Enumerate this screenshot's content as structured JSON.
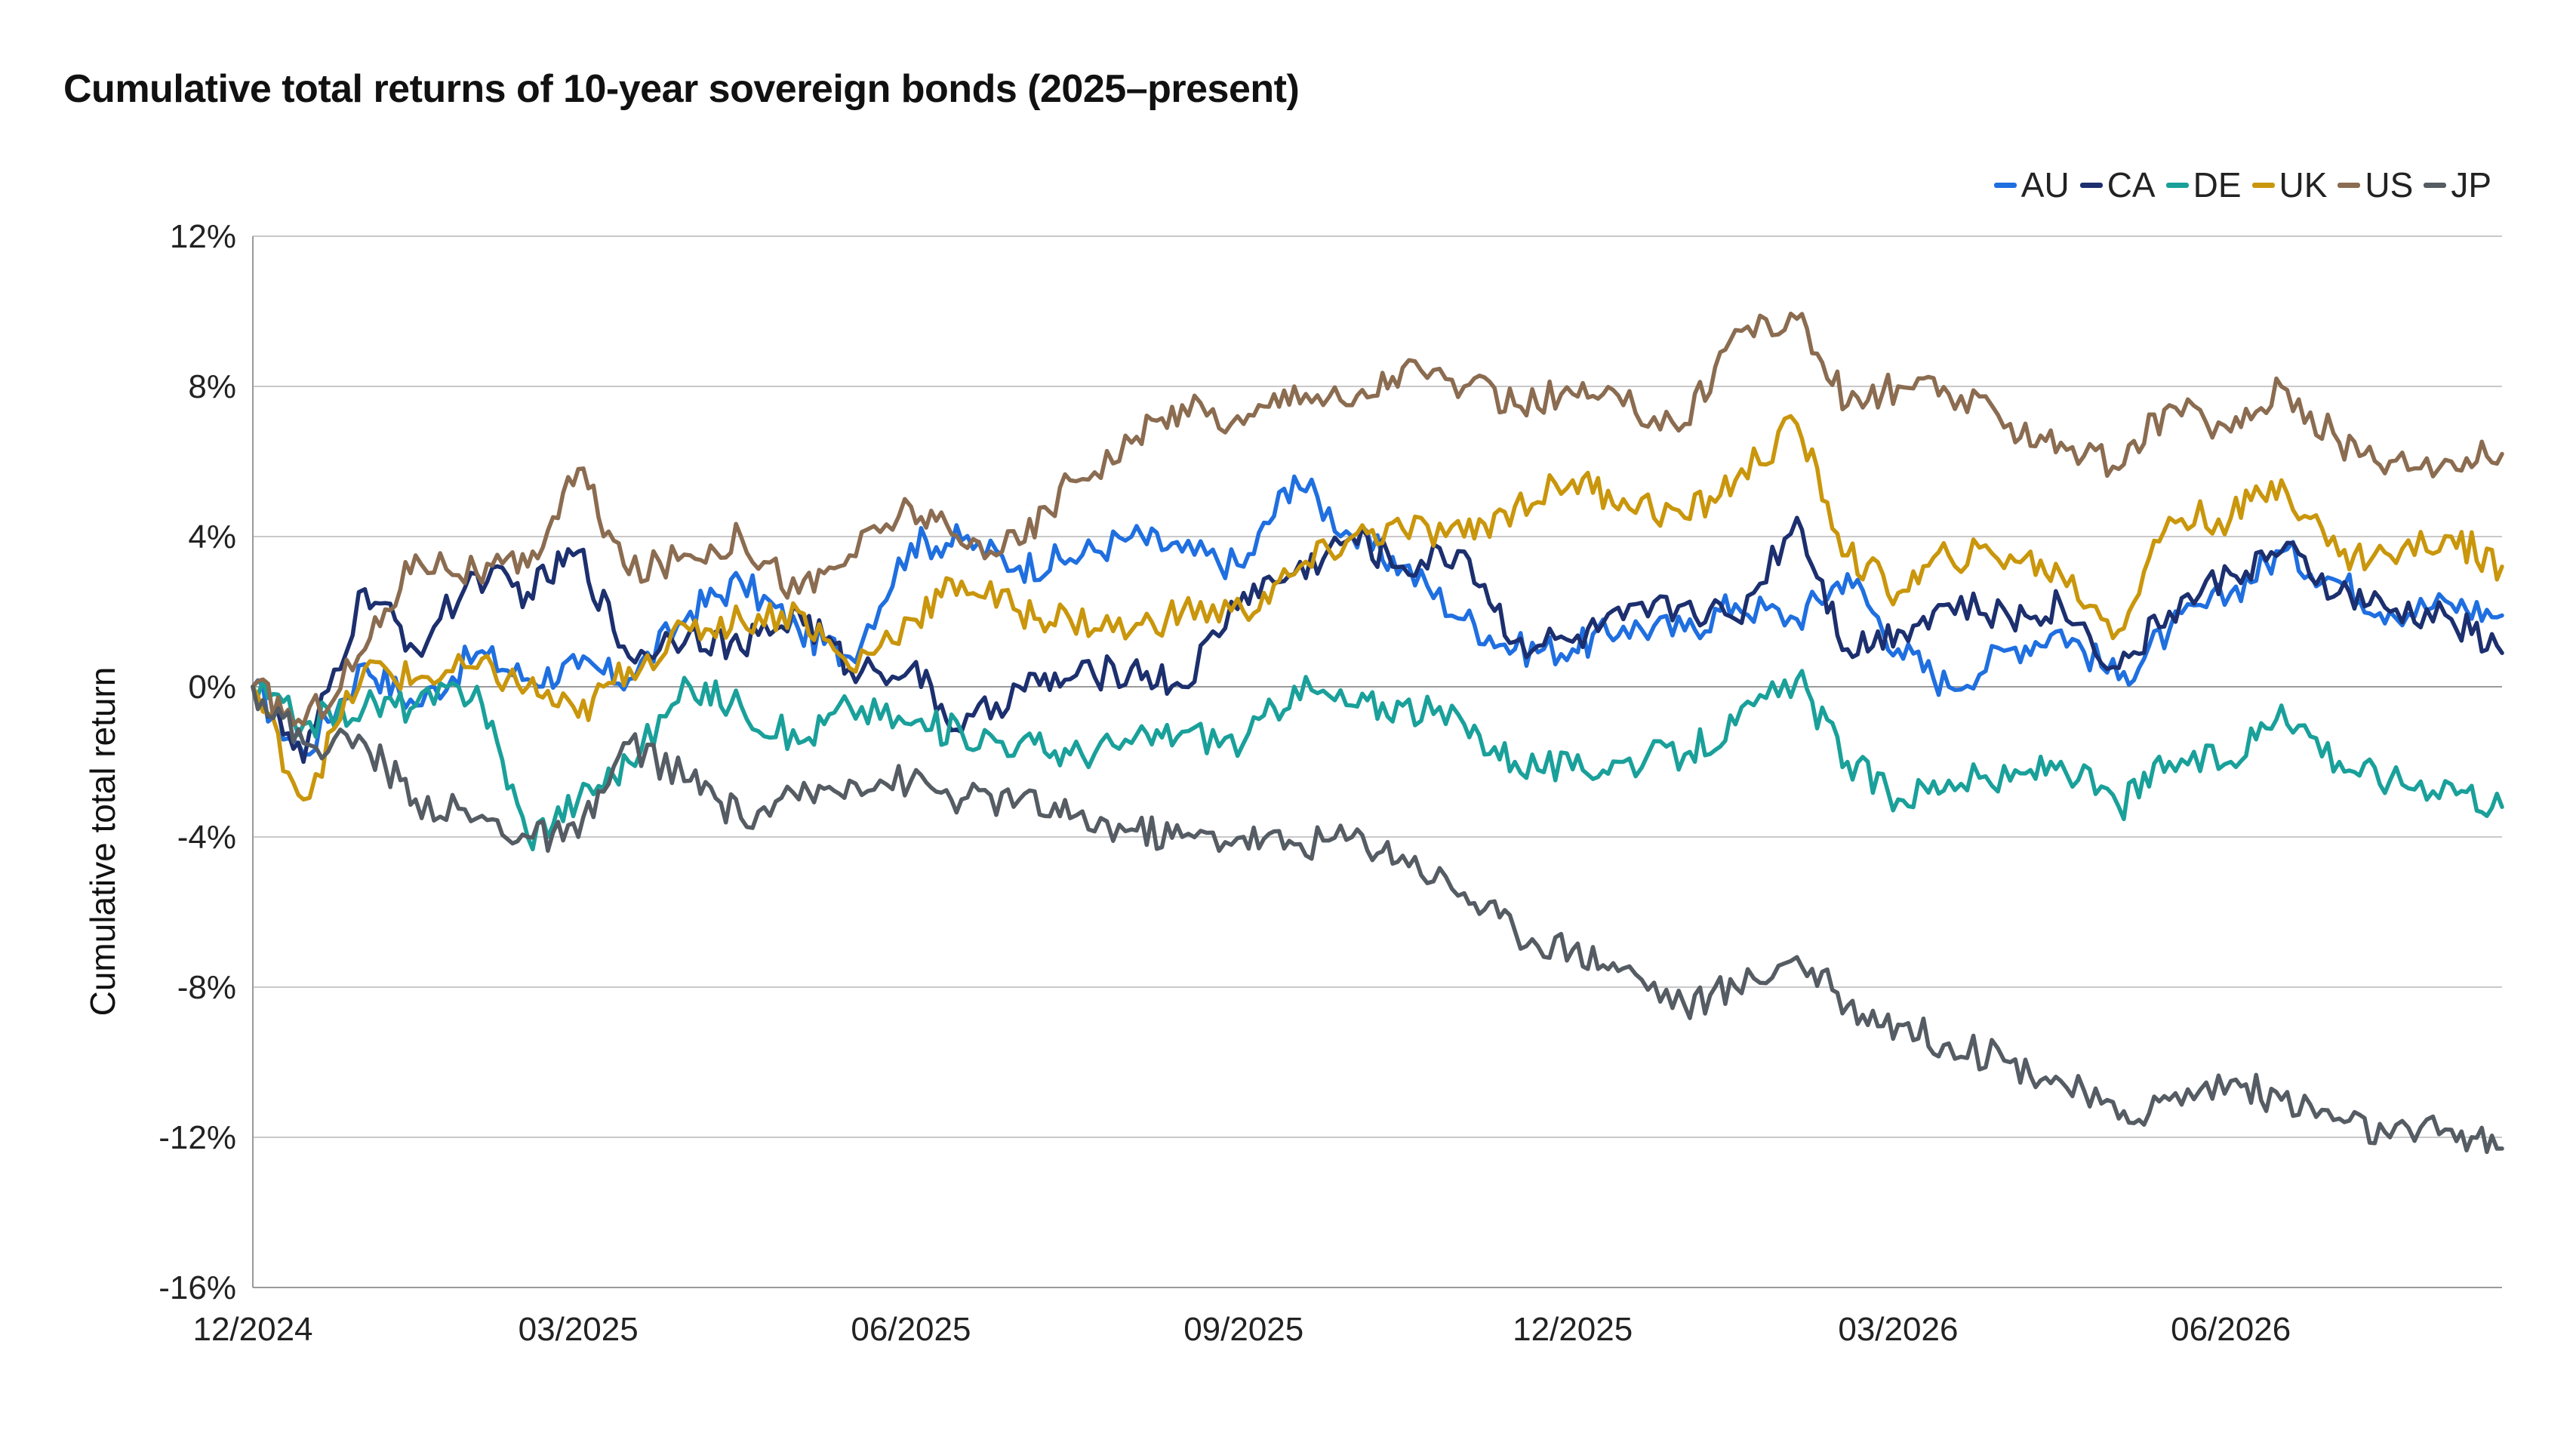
{
  "chart_data": {
    "type": "line",
    "title": "Cumulative total returns of 10-year sovereign bonds (2025–present)",
    "ylabel": "Cumulative total return",
    "xlabel": "",
    "ylim": [
      -16,
      12
    ],
    "yticks": [
      12,
      8,
      4,
      0,
      -4,
      -8,
      -12,
      -16
    ],
    "ytick_labels": [
      "12%",
      "8%",
      "4%",
      "0%",
      "-4%",
      "-8%",
      "-12%",
      "-16%"
    ],
    "xlim": [
      "2024-12-01",
      "2026-08-15"
    ],
    "xticks": [
      "2024-12-01",
      "2025-03-01",
      "2025-06-01",
      "2025-09-01",
      "2025-12-01",
      "2026-03-01",
      "2026-06-01"
    ],
    "xtick_labels": [
      "12/2024",
      "03/2025",
      "06/2025",
      "09/2025",
      "12/2025",
      "03/2026",
      "06/2026"
    ],
    "grid": true,
    "legend_position": "top-right",
    "x": [
      "2024-12-01",
      "2024-12-15",
      "2025-01-01",
      "2025-01-15",
      "2025-02-01",
      "2025-02-15",
      "2025-03-01",
      "2025-03-15",
      "2025-04-01",
      "2025-04-15",
      "2025-05-01",
      "2025-05-15",
      "2025-06-01",
      "2025-06-15",
      "2025-07-01",
      "2025-07-15",
      "2025-08-01",
      "2025-08-15",
      "2025-09-01",
      "2025-09-15",
      "2025-10-01",
      "2025-10-15",
      "2025-11-01",
      "2025-11-15",
      "2025-12-01",
      "2025-12-15",
      "2026-01-01",
      "2026-01-15",
      "2026-02-01",
      "2026-02-15",
      "2026-03-01",
      "2026-03-15",
      "2026-04-01",
      "2026-04-15",
      "2026-05-01",
      "2026-05-15",
      "2026-06-01",
      "2026-06-15",
      "2026-07-01",
      "2026-07-15",
      "2026-08-01",
      "2026-08-15"
    ],
    "series": [
      {
        "name": "AU",
        "color": "#1f6fe0",
        "values": [
          0.0,
          -1.8,
          0.6,
          -0.5,
          0.9,
          0.2,
          0.5,
          0.2,
          2.0,
          2.8,
          1.5,
          0.8,
          3.8,
          3.9,
          3.2,
          3.4,
          4.0,
          3.6,
          3.2,
          5.6,
          4.0,
          3.2,
          1.8,
          1.0,
          1.0,
          1.6,
          1.5,
          2.2,
          1.8,
          3.0,
          1.0,
          0.0,
          1.0,
          1.5,
          0.2,
          1.5,
          2.5,
          3.6,
          2.8,
          2.0,
          2.2,
          1.9
        ]
      },
      {
        "name": "CA",
        "color": "#1c2f6e",
        "values": [
          0.0,
          -2.0,
          2.6,
          1.0,
          3.0,
          2.5,
          3.6,
          0.8,
          1.5,
          1.0,
          2.0,
          0.5,
          0.5,
          -1.2,
          0.0,
          0.2,
          0.5,
          0.0,
          2.5,
          3.0,
          4.0,
          3.2,
          3.6,
          1.2,
          1.2,
          1.8,
          2.2,
          1.8,
          4.5,
          1.0,
          1.5,
          2.2,
          1.8,
          2.2,
          0.5,
          2.0,
          3.0,
          3.6,
          2.5,
          2.0,
          1.8,
          0.9
        ]
      },
      {
        "name": "DE",
        "color": "#1aa09a",
        "values": [
          0.0,
          -1.0,
          -0.5,
          -0.5,
          0.0,
          -4.0,
          -3.0,
          -2.0,
          0.0,
          -0.5,
          -1.5,
          -0.5,
          -1.0,
          -1.2,
          -1.5,
          -1.8,
          -1.5,
          -1.2,
          -1.5,
          0.0,
          -0.5,
          -0.5,
          -1.0,
          -2.0,
          -2.2,
          -2.0,
          -1.8,
          -1.0,
          0.2,
          -2.0,
          -3.0,
          -2.5,
          -2.5,
          -2.0,
          -3.2,
          -2.0,
          -2.0,
          -0.5,
          -2.0,
          -2.5,
          -2.6,
          -3.2
        ]
      },
      {
        "name": "UK",
        "color": "#c9960c",
        "values": [
          0.0,
          -3.0,
          0.5,
          0.2,
          0.5,
          0.0,
          -0.8,
          0.5,
          1.5,
          1.8,
          2.0,
          0.5,
          1.8,
          2.8,
          2.0,
          1.8,
          1.5,
          2.0,
          2.0,
          3.0,
          4.0,
          4.2,
          4.0,
          4.8,
          5.5,
          5.0,
          4.5,
          5.5,
          7.0,
          3.5,
          2.5,
          3.5,
          3.5,
          3.0,
          1.5,
          4.5,
          4.5,
          5.5,
          3.5,
          3.5,
          4.0,
          3.2
        ]
      },
      {
        "name": "US",
        "color": "#8b6c50",
        "values": [
          0.0,
          -1.0,
          1.0,
          3.5,
          3.0,
          3.2,
          5.8,
          3.0,
          3.5,
          4.0,
          2.5,
          3.5,
          4.8,
          3.8,
          3.8,
          5.5,
          6.5,
          7.5,
          7.0,
          8.0,
          7.5,
          8.5,
          8.0,
          7.5,
          7.8,
          7.5,
          7.0,
          9.5,
          9.8,
          7.5,
          8.0,
          7.8,
          7.0,
          6.5,
          5.8,
          7.5,
          6.8,
          8.0,
          6.5,
          6.0,
          6.0,
          6.2
        ]
      },
      {
        "name": "JP",
        "color": "#555c63",
        "values": [
          0.0,
          -1.5,
          -1.5,
          -3.0,
          -3.5,
          -4.0,
          -4.0,
          -1.5,
          -2.5,
          -3.5,
          -3.0,
          -2.5,
          -2.5,
          -3.0,
          -3.0,
          -3.5,
          -3.8,
          -4.0,
          -4.0,
          -4.2,
          -4.0,
          -4.5,
          -5.5,
          -6.5,
          -7.0,
          -7.5,
          -8.5,
          -8.0,
          -7.2,
          -8.5,
          -9.0,
          -9.5,
          -10.0,
          -10.5,
          -11.5,
          -11.0,
          -10.5,
          -11.0,
          -11.5,
          -12.0,
          -11.8,
          -12.3
        ]
      }
    ]
  }
}
